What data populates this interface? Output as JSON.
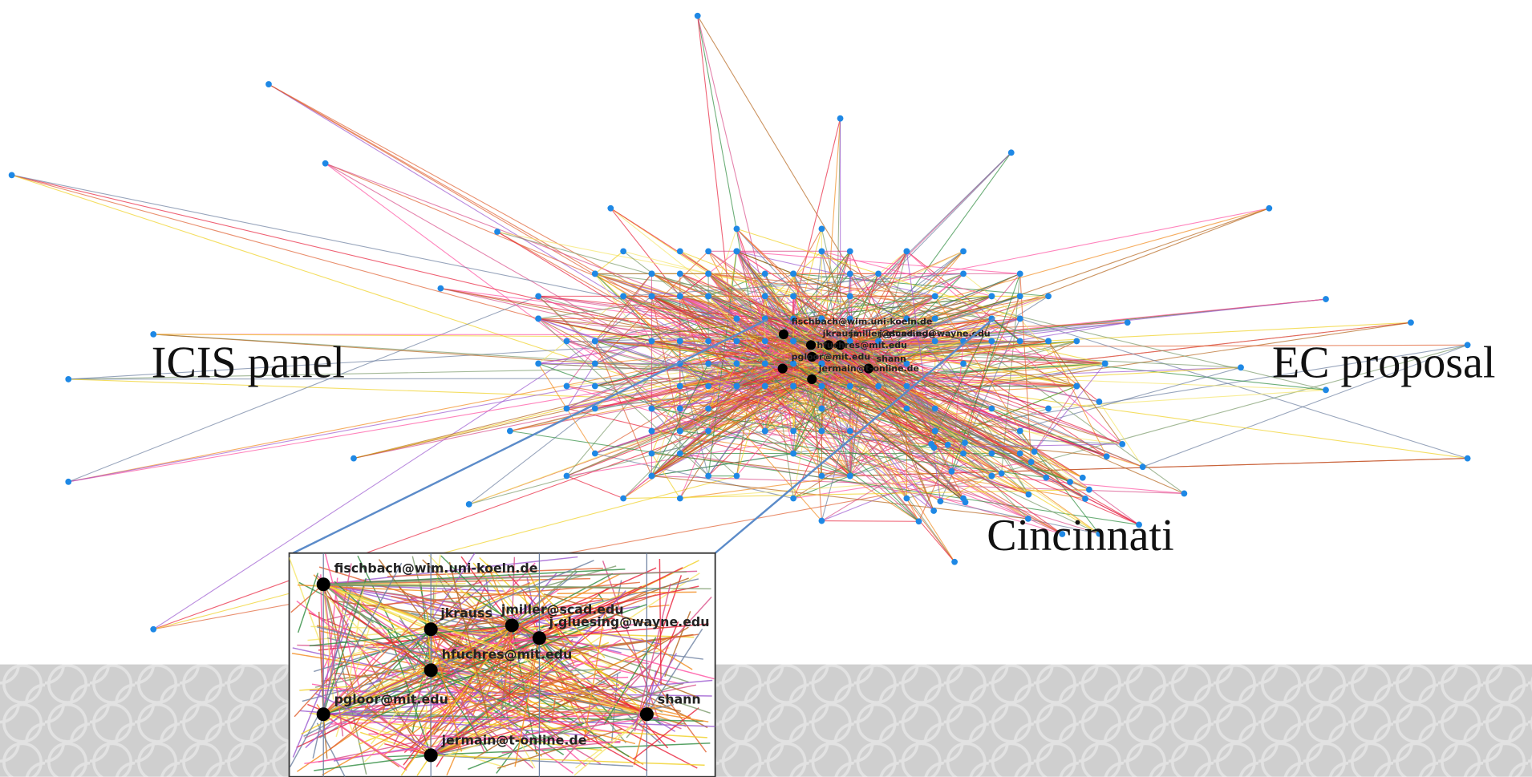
{
  "clusters": [
    {
      "label": "ICIS panel"
    },
    {
      "label": "EC proposal"
    },
    {
      "label": "Cincinnati"
    }
  ],
  "inset": {
    "labels": [
      "fischbach@wim.uni-koeln.de",
      "jkrauss",
      "jmiller@scad.edu",
      "j.gluesing@wayne.edu",
      "hfuchres@mit.edu",
      "pgloor@mit.edu",
      "shann",
      "jermain@t-online.de"
    ]
  }
}
